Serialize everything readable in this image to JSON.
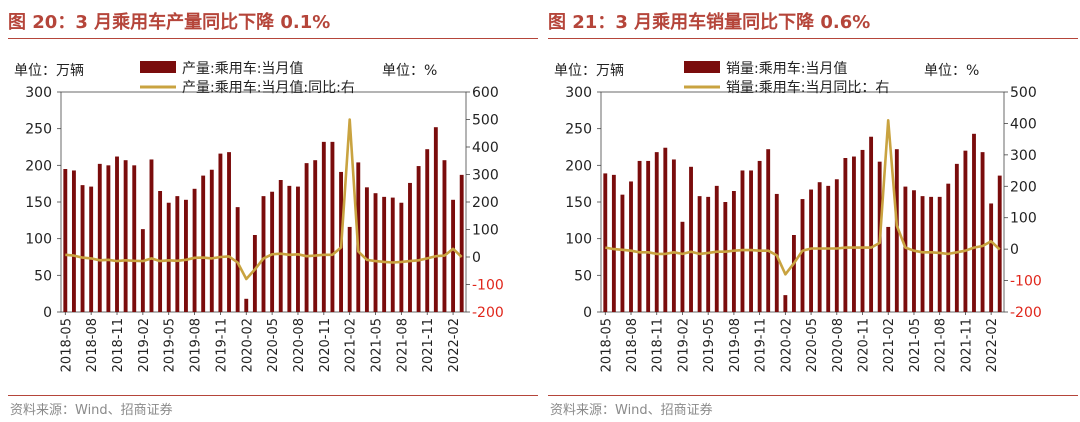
{
  "figures": [
    {
      "title": "图 20：3 月乘用车产量同比下降 0.1%",
      "source": "资料来源：Wind、招商证券",
      "left_unit": "单位：万辆",
      "right_unit": "单位：%"
    },
    {
      "title": "图 21：3 月乘用车销量同比下降 0.6%",
      "source": "资料来源：Wind、招商证券",
      "left_unit": "单位：万辆",
      "right_unit": "单位：%"
    }
  ],
  "colors": {
    "bar": "#7a0c0c",
    "line": "#c9a340",
    "title": "#b5453a",
    "negative": "#e0261b",
    "text": "#222222"
  },
  "chart_data": [
    {
      "type": "bar",
      "title": "图 20：3 月乘用车产量同比下降 0.1%",
      "categories": [
        "2018-05",
        "2018-06",
        "2018-07",
        "2018-08",
        "2018-09",
        "2018-10",
        "2018-11",
        "2018-12",
        "2019-01",
        "2019-02",
        "2019-03",
        "2019-04",
        "2019-05",
        "2019-06",
        "2019-07",
        "2019-08",
        "2019-09",
        "2019-10",
        "2019-11",
        "2019-12",
        "2020-01",
        "2020-02",
        "2020-03",
        "2020-04",
        "2020-05",
        "2020-06",
        "2020-07",
        "2020-08",
        "2020-09",
        "2020-10",
        "2020-11",
        "2020-12",
        "2021-01",
        "2021-02",
        "2021-03",
        "2021-04",
        "2021-05",
        "2021-06",
        "2021-07",
        "2021-08",
        "2021-09",
        "2021-10",
        "2021-11",
        "2021-12",
        "2022-01",
        "2022-02",
        "2022-03"
      ],
      "tick_labels": [
        "2018-05",
        "2018-08",
        "2018-11",
        "2019-02",
        "2019-05",
        "2019-08",
        "2019-11",
        "2020-02",
        "2020-05",
        "2020-08",
        "2020-11",
        "2021-02",
        "2021-05",
        "2021-08",
        "2021-11",
        "2022-02"
      ],
      "series": [
        {
          "name": "产量:乘用车:当月值",
          "axis": "left",
          "kind": "bar",
          "values": [
            195,
            193,
            173,
            171,
            202,
            200,
            212,
            207,
            200,
            113,
            208,
            165,
            149,
            158,
            153,
            168,
            186,
            194,
            216,
            218,
            143,
            18,
            105,
            158,
            164,
            180,
            172,
            171,
            203,
            207,
            232,
            232,
            191,
            116,
            204,
            170,
            162,
            157,
            156,
            149,
            176,
            199,
            222,
            252,
            207,
            153,
            187
          ]
        },
        {
          "name": "产量:乘用车:当月值:同比:右",
          "axis": "right",
          "kind": "line",
          "values": [
            8,
            5,
            -2,
            -5,
            -12,
            -10,
            -15,
            -12,
            -14,
            -15,
            -5,
            -15,
            -12,
            -14,
            -10,
            -3,
            -2,
            -5,
            0,
            2,
            -20,
            -80,
            -45,
            -5,
            10,
            12,
            8,
            10,
            3,
            5,
            8,
            8,
            35,
            500,
            20,
            -10,
            -15,
            -18,
            -20,
            -18,
            -15,
            -12,
            -5,
            3,
            5,
            30,
            0
          ]
        }
      ],
      "ylim_left": [
        0,
        300
      ],
      "yticks_left": [
        0,
        50,
        100,
        150,
        200,
        250,
        300
      ],
      "ylim_right": [
        -200,
        600
      ],
      "yticks_right": [
        -200,
        -100,
        0,
        100,
        200,
        300,
        400,
        500,
        600
      ],
      "left_label": "单位：万辆",
      "right_label": "单位：%"
    },
    {
      "type": "bar",
      "title": "图 21：3 月乘用车销量同比下降 0.6%",
      "categories": [
        "2018-05",
        "2018-06",
        "2018-07",
        "2018-08",
        "2018-09",
        "2018-10",
        "2018-11",
        "2018-12",
        "2019-01",
        "2019-02",
        "2019-03",
        "2019-04",
        "2019-05",
        "2019-06",
        "2019-07",
        "2019-08",
        "2019-09",
        "2019-10",
        "2019-11",
        "2019-12",
        "2020-01",
        "2020-02",
        "2020-03",
        "2020-04",
        "2020-05",
        "2020-06",
        "2020-07",
        "2020-08",
        "2020-09",
        "2020-10",
        "2020-11",
        "2020-12",
        "2021-01",
        "2021-02",
        "2021-03",
        "2021-04",
        "2021-05",
        "2021-06",
        "2021-07",
        "2021-08",
        "2021-09",
        "2021-10",
        "2021-11",
        "2021-12",
        "2022-01",
        "2022-02",
        "2022-03"
      ],
      "tick_labels": [
        "2018-05",
        "2018-08",
        "2018-11",
        "2019-02",
        "2019-05",
        "2019-08",
        "2019-11",
        "2020-02",
        "2020-05",
        "2020-08",
        "2020-11",
        "2021-02",
        "2021-05",
        "2021-08",
        "2021-11",
        "2022-02"
      ],
      "series": [
        {
          "name": "销量:乘用车:当月值",
          "axis": "left",
          "kind": "bar",
          "values": [
            189,
            187,
            160,
            178,
            206,
            206,
            218,
            224,
            208,
            123,
            198,
            158,
            157,
            172,
            150,
            165,
            193,
            193,
            206,
            222,
            161,
            23,
            105,
            154,
            167,
            177,
            172,
            181,
            210,
            212,
            221,
            239,
            205,
            116,
            222,
            171,
            166,
            158,
            157,
            157,
            175,
            202,
            220,
            243,
            218,
            148,
            186
          ]
        },
        {
          "name": "销量:乘用车:当月同比：右",
          "axis": "right",
          "kind": "line",
          "values": [
            5,
            0,
            -2,
            -5,
            -10,
            -10,
            -15,
            -15,
            -10,
            -15,
            -8,
            -15,
            -12,
            -8,
            -8,
            -5,
            -3,
            -3,
            -5,
            -5,
            -20,
            -80,
            -45,
            -5,
            2,
            2,
            2,
            2,
            5,
            5,
            5,
            5,
            20,
            410,
            75,
            5,
            -5,
            -10,
            -10,
            -12,
            -15,
            -10,
            -5,
            5,
            10,
            25,
            -1
          ]
        }
      ],
      "ylim_left": [
        0,
        300
      ],
      "yticks_left": [
        0,
        50,
        100,
        150,
        200,
        250,
        300
      ],
      "ylim_right": [
        -200,
        500
      ],
      "yticks_right": [
        -200,
        -100,
        0,
        100,
        200,
        300,
        400,
        500
      ],
      "left_label": "单位：万辆",
      "right_label": "单位：%"
    }
  ]
}
